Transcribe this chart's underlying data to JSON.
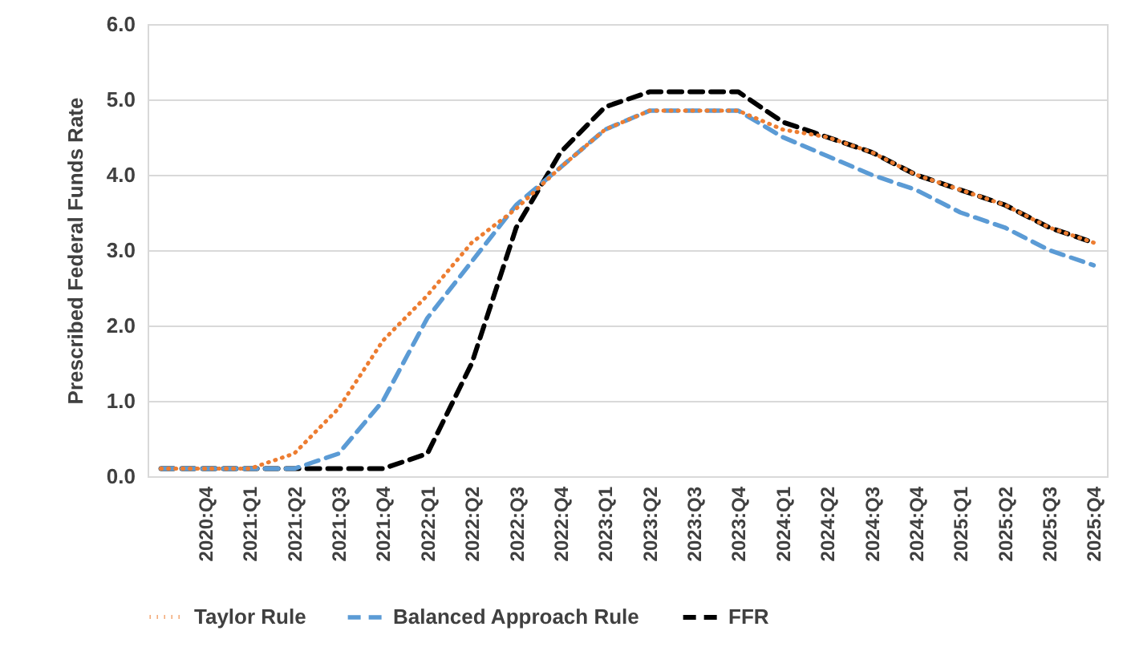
{
  "chart_data": {
    "type": "line",
    "ylabel": "Prescribed Federal Funds Rate",
    "categories": [
      null,
      "2020:Q4",
      "2021:Q1",
      "2021:Q2",
      "2021:Q3",
      "2021:Q4",
      "2022:Q1",
      "2022:Q2",
      "2022:Q3",
      "2022:Q4",
      "2023:Q1",
      "2023:Q2",
      "2023:Q3",
      "2023:Q4",
      "2024:Q1",
      "2024:Q2",
      "2024:Q3",
      "2024:Q4",
      "2025:Q1",
      "2025:Q2",
      "2025:Q3",
      "2025:Q4"
    ],
    "series": [
      {
        "name": "Taylor Rule",
        "color": "#ed7d31",
        "line_style": "dotted",
        "values": [
          0.1,
          0.1,
          0.1,
          0.3,
          0.9,
          1.8,
          2.4,
          3.1,
          3.55,
          4.1,
          4.6,
          4.85,
          4.85,
          4.85,
          4.6,
          4.5,
          4.3,
          4.0,
          3.8,
          3.6,
          3.3,
          3.1
        ]
      },
      {
        "name": "Balanced Approach Rule",
        "color": "#5b9bd5",
        "line_style": "dashed",
        "values": [
          0.1,
          0.1,
          0.1,
          0.1,
          0.3,
          1.0,
          2.1,
          2.85,
          3.6,
          4.1,
          4.6,
          4.85,
          4.85,
          4.85,
          4.5,
          4.25,
          4.0,
          3.8,
          3.5,
          3.3,
          3.0,
          2.8
        ]
      },
      {
        "name": "FFR",
        "color": "#000000",
        "line_style": "dashed",
        "values": [
          0.1,
          0.1,
          0.1,
          0.1,
          0.1,
          0.1,
          0.3,
          1.5,
          3.3,
          4.3,
          4.9,
          5.1,
          5.1,
          5.1,
          4.7,
          4.5,
          4.3,
          4.0,
          3.8,
          3.6,
          3.3,
          3.1
        ]
      }
    ],
    "ylim": [
      0,
      6
    ],
    "yticks": [
      {
        "value": 0,
        "label": "0.0"
      },
      {
        "value": 1,
        "label": "1.0"
      },
      {
        "value": 2,
        "label": "2.0"
      },
      {
        "value": 3,
        "label": "3.0"
      },
      {
        "value": 4,
        "label": "4.0"
      },
      {
        "value": 5,
        "label": "5.0"
      },
      {
        "value": 6,
        "label": "6.0"
      }
    ],
    "grid": "y",
    "legend": "bottom"
  }
}
